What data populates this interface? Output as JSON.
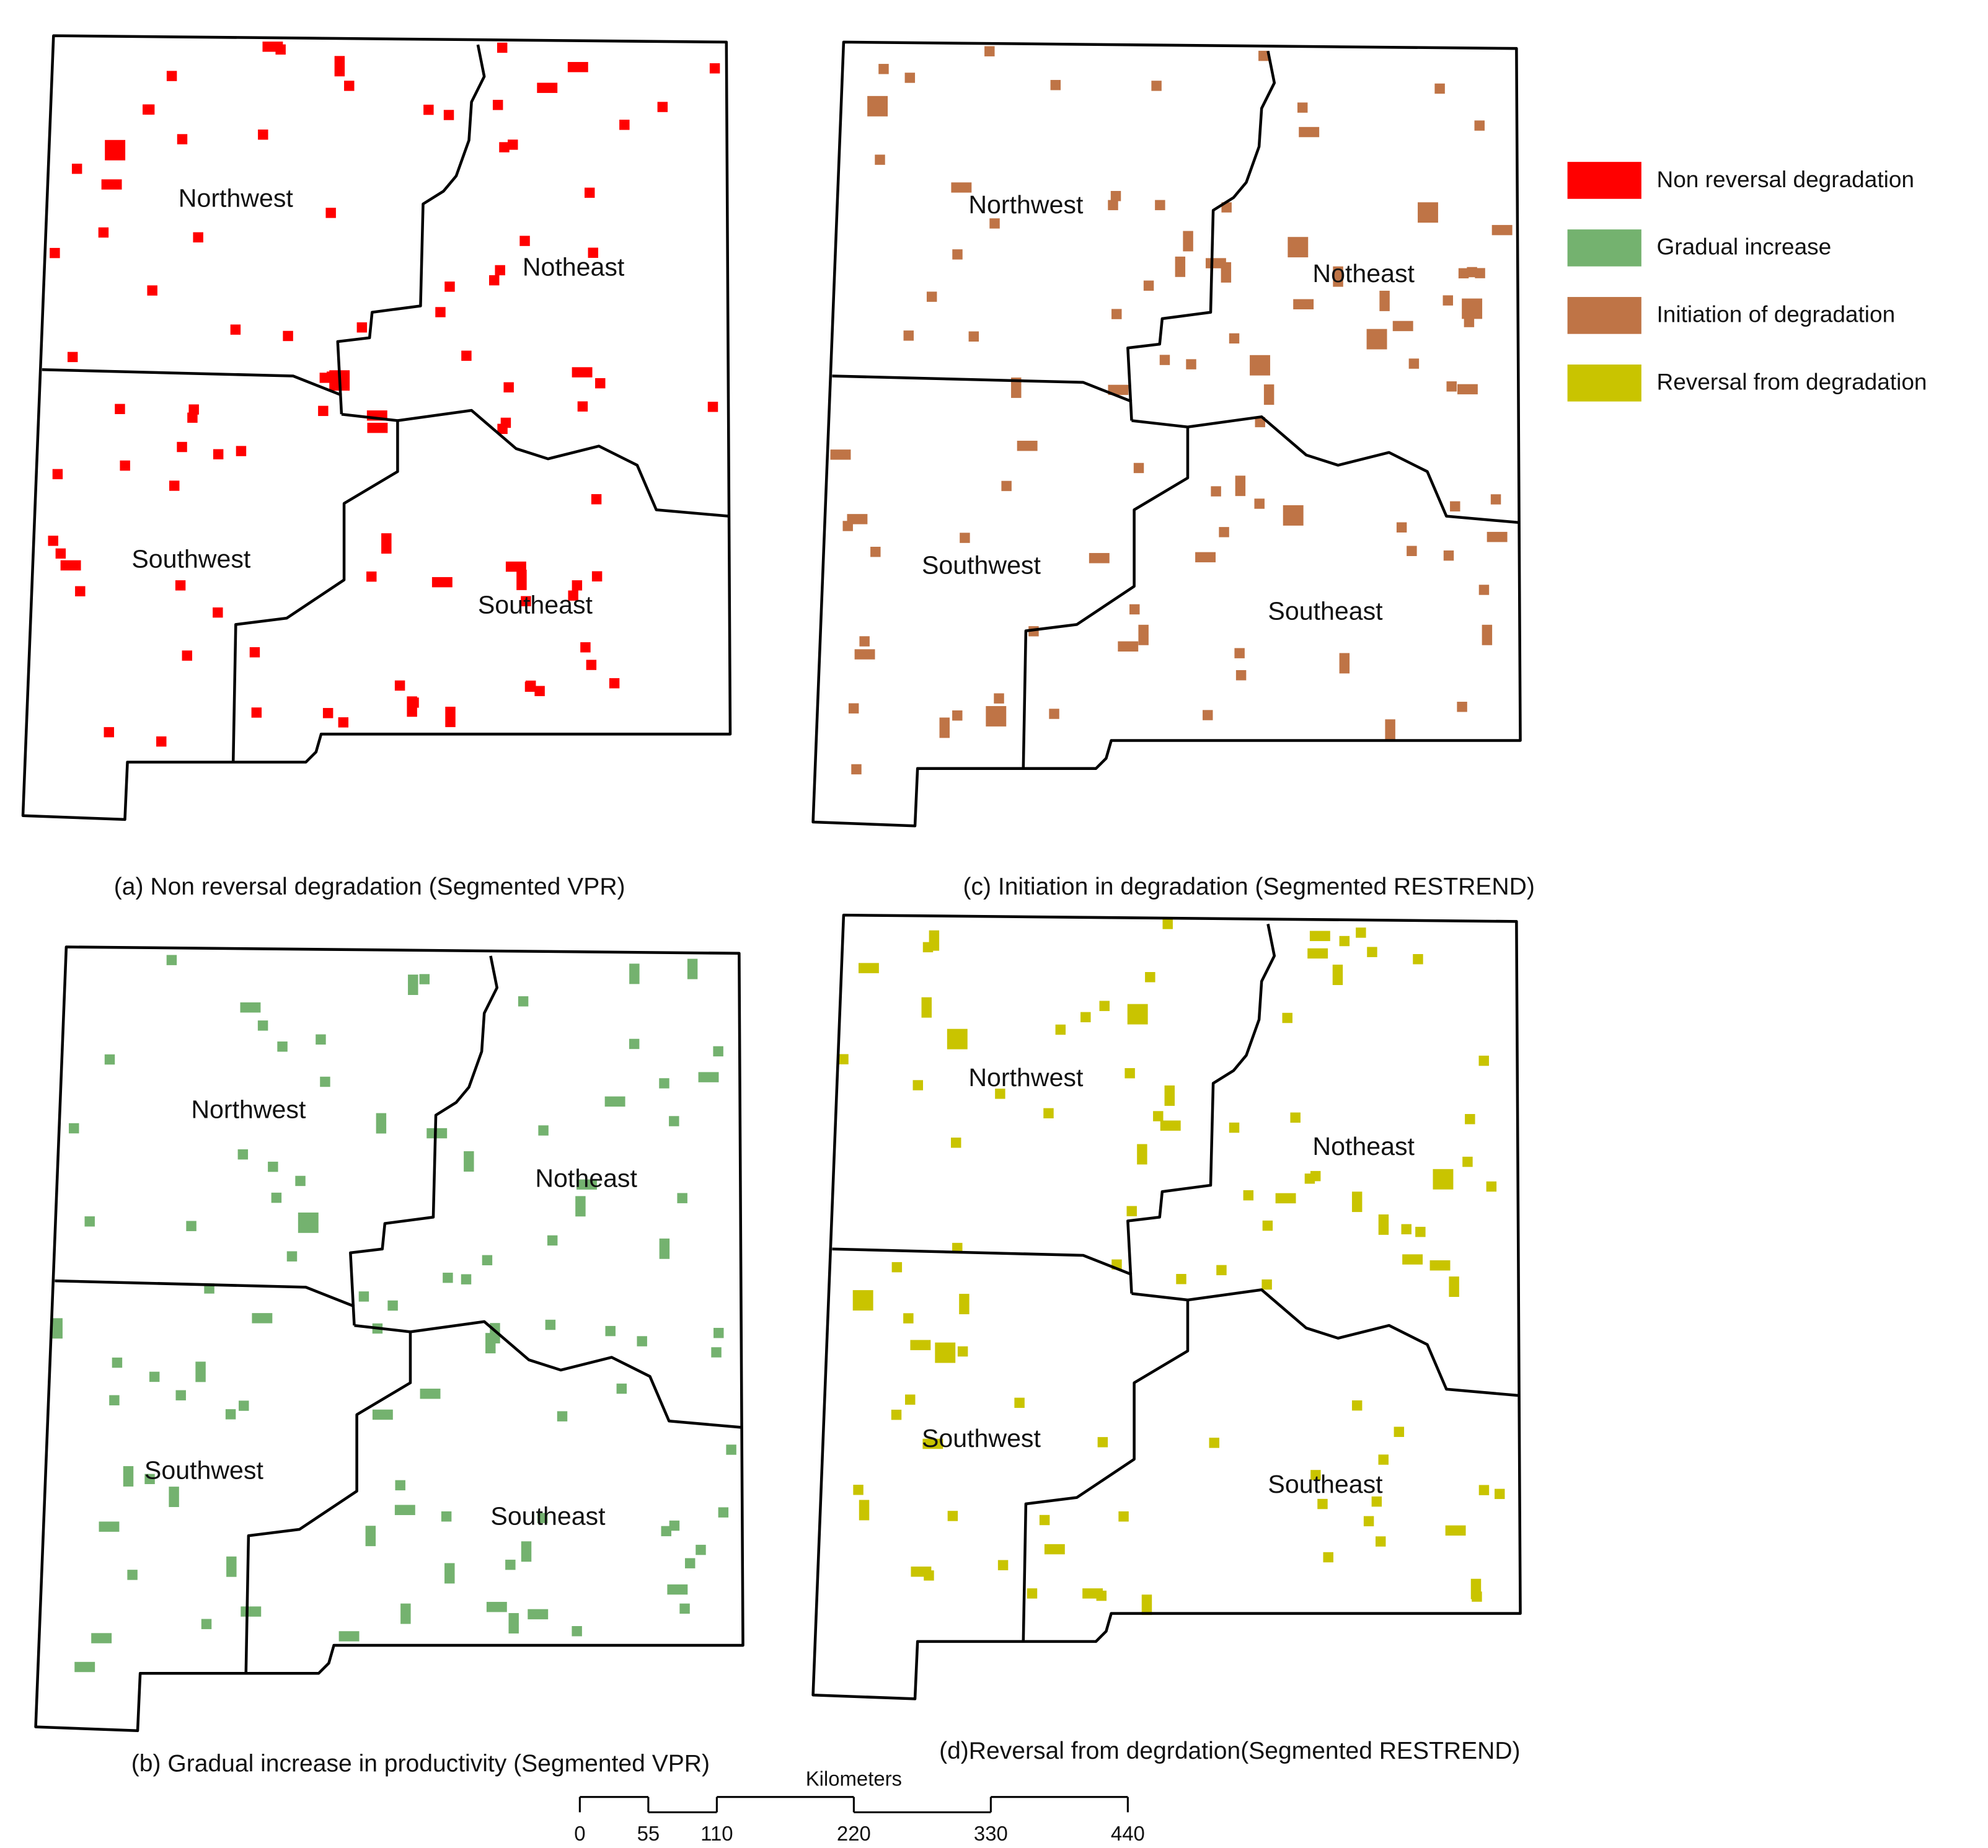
{
  "panels": [
    {
      "caption": "(a) Non reversal degradation (Segmented VPR)",
      "regions": [
        "Northwest",
        "Notheast",
        "Southwest",
        "Southeast"
      ],
      "color": "#ff0000"
    },
    {
      "caption": "(b) Gradual increase in productivity (Segmented VPR)",
      "regions": [
        "Northwest",
        "Notheast",
        "Southwest",
        "Southeast"
      ],
      "color": "#74b26f"
    },
    {
      "caption": "(c) Initiation in degradation (Segmented RESTREND)",
      "regions": [
        "Northwest",
        "Notheast",
        "Southwest",
        "Southeast"
      ],
      "color": "#bf7446"
    },
    {
      "caption": "(d)Reversal from degrdation(Segmented RESTREND)",
      "regions": [
        "Northwest",
        "Notheast",
        "Southwest",
        "Southeast"
      ],
      "color": "#c9c400"
    }
  ],
  "legend": [
    {
      "label": "Non reversal degradation",
      "color": "#ff0000"
    },
    {
      "label": "Gradual increase",
      "color": "#74b26f"
    },
    {
      "label": "Initiation of degradation",
      "color": "#bf7446"
    },
    {
      "label": "Reversal from degradation",
      "color": "#c9c400"
    }
  ],
  "scale_bar": {
    "unit": "Kilometers",
    "ticks": [
      0,
      55,
      110,
      220,
      330,
      440
    ]
  }
}
